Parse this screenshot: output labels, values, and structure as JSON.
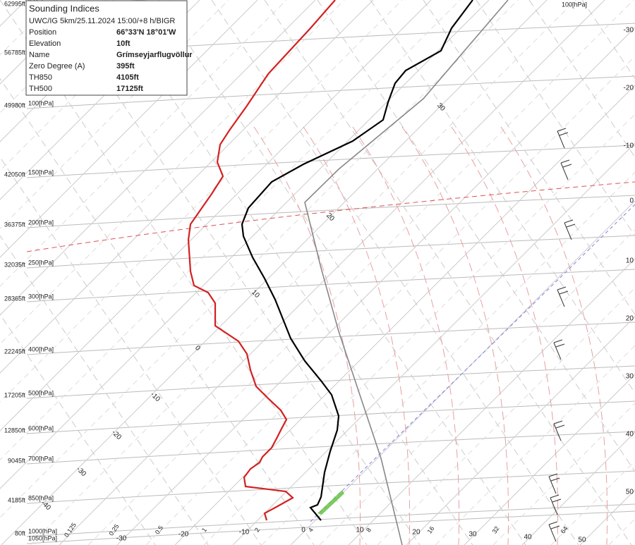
{
  "info_box": {
    "title": "Sounding Indices",
    "subtitle": "UWC/IG 5km/25.11.2024 15:00/+8 h/BIGR",
    "rows": [
      [
        "Position",
        "66°33'N 18°01'W"
      ],
      [
        "Elevation",
        "10ft"
      ],
      [
        "Name",
        "Grímseyjarflugvöllur"
      ],
      [
        "Zero Degree (A)",
        "395ft"
      ],
      [
        "TH850",
        "4105ft"
      ],
      [
        "TH500",
        "17125ft"
      ]
    ]
  },
  "levels": [
    {
      "altitude": "62995ft",
      "pressure": "[hPa]"
    },
    {
      "altitude": "56785ft"
    },
    {
      "altitude": "49980ft",
      "pressure": "100[hPa]"
    },
    {
      "altitude": "42050ft",
      "pressure": "150[hPa]"
    },
    {
      "altitude": "36375ft",
      "pressure": "200[hPa]"
    },
    {
      "altitude": "32035ft",
      "pressure": "250[hPa]"
    },
    {
      "altitude": "28365ft",
      "pressure": "300[hPa]"
    },
    {
      "altitude": "22245ft",
      "pressure": "400[hPa]"
    },
    {
      "altitude": "17205ft",
      "pressure": "500[hPa]"
    },
    {
      "altitude": "12850ft",
      "pressure": "600[hPa]"
    },
    {
      "altitude": "9045ft",
      "pressure": "700[hPa]"
    },
    {
      "altitude": "4185ft",
      "pressure": "850[hPa]"
    },
    {
      "altitude": "80ft",
      "pressure": "1000[hPa]"
    },
    {
      "pressure": "1050[hPa]"
    }
  ],
  "top_right_pressure": "100[hPa]",
  "right_temperatures": [
    "-30",
    "-20",
    "-10",
    "0",
    "10",
    "20",
    "30",
    "40",
    "50"
  ],
  "bottom_temperatures": [
    "-30",
    "-20",
    "-10",
    "0",
    "10",
    "20",
    "30",
    "40",
    "50"
  ],
  "mixing_ratios": [
    "0.125",
    "0.25",
    "0.5",
    "1",
    "2",
    "4",
    "8",
    "16",
    "32",
    "64"
  ],
  "isotherm_labels": [
    "30",
    "20",
    "10",
    "0",
    "-10",
    "-20",
    "-30",
    "-40"
  ]
}
